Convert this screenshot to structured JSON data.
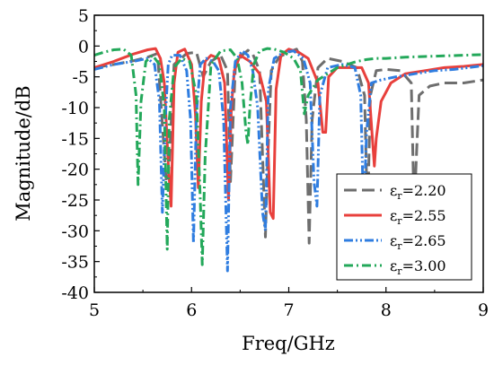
{
  "chart_data": {
    "type": "line",
    "title": "",
    "xlabel": "Freq/GHz",
    "ylabel": "Magnitude/dB",
    "xlim": [
      5,
      9
    ],
    "ylim": [
      -40,
      5
    ],
    "xticks": [
      5,
      6,
      7,
      8,
      9
    ],
    "yticks": [
      5,
      0,
      -5,
      -10,
      -15,
      -20,
      -25,
      -30,
      -35,
      -40
    ],
    "grid": false,
    "legend_position": "bottom-right",
    "series": [
      {
        "name_prefix": "ε",
        "name_sub": "r",
        "name_value": "=2.20",
        "color": "#6e6e6e",
        "dash": "long-dash",
        "x": [
          5.0,
          5.2,
          5.4,
          5.55,
          5.65,
          5.74,
          5.76,
          5.82,
          5.95,
          6.05,
          6.12,
          6.2,
          6.3,
          6.37,
          6.4,
          6.45,
          6.52,
          6.58,
          6.63,
          6.7,
          6.76,
          6.78,
          6.82,
          6.9,
          7.0,
          7.08,
          7.14,
          7.18,
          7.21,
          7.24,
          7.3,
          7.4,
          7.55,
          7.7,
          7.78,
          7.81,
          7.84,
          7.9,
          8.0,
          8.15,
          8.26,
          8.29,
          8.31,
          8.34,
          8.45,
          8.6,
          8.8,
          9.0
        ],
        "y": [
          -3.5,
          -3.0,
          -2.4,
          -1.8,
          -1.2,
          -22.0,
          -22.0,
          -3.0,
          -1.2,
          -1.0,
          -5.0,
          -2.5,
          -1.5,
          -4.0,
          -22.0,
          -3.5,
          -1.5,
          -0.7,
          -1.3,
          -4.0,
          -31.0,
          -20.0,
          -4.0,
          -1.8,
          -1.0,
          -0.5,
          -2.5,
          -12.0,
          -32.0,
          -12.0,
          -3.5,
          -2.0,
          -2.5,
          -3.5,
          -8.0,
          -28.0,
          -8.0,
          -4.0,
          -3.8,
          -4.0,
          -6.0,
          -27.0,
          -19.0,
          -8.0,
          -6.5,
          -6.0,
          -6.0,
          -5.5
        ]
      },
      {
        "name_prefix": "ε",
        "name_sub": "r",
        "name_value": "=2.55",
        "color": "#e8403c",
        "dash": "solid",
        "x": [
          5.0,
          5.2,
          5.4,
          5.55,
          5.63,
          5.68,
          5.72,
          5.76,
          5.79,
          5.82,
          5.86,
          5.93,
          6.0,
          6.04,
          6.07,
          6.1,
          6.14,
          6.2,
          6.28,
          6.34,
          6.38,
          6.41,
          6.44,
          6.5,
          6.6,
          6.7,
          6.77,
          6.81,
          6.84,
          6.87,
          6.92,
          7.0,
          7.1,
          7.2,
          7.3,
          7.35,
          7.38,
          7.41,
          7.5,
          7.65,
          7.75,
          7.82,
          7.86,
          7.88,
          7.9,
          7.95,
          8.05,
          8.2,
          8.4,
          8.6,
          8.8,
          9.0
        ],
        "y": [
          -3.5,
          -2.5,
          -1.3,
          -0.6,
          -0.4,
          -2.0,
          -6.0,
          -19.0,
          -26.0,
          -6.0,
          -1.0,
          -0.5,
          -3.0,
          -11.0,
          -23.0,
          -9.0,
          -2.5,
          -1.5,
          -2.0,
          -6.0,
          -25.0,
          -10.0,
          -4.0,
          -1.5,
          -2.5,
          -4.5,
          -9.0,
          -27.0,
          -28.0,
          -7.0,
          -1.5,
          -0.5,
          -1.0,
          -2.0,
          -6.0,
          -14.0,
          -14.0,
          -5.0,
          -3.5,
          -3.5,
          -3.5,
          -6.0,
          -15.0,
          -19.5,
          -15.0,
          -9.0,
          -6.0,
          -4.5,
          -4.0,
          -3.5,
          -3.3,
          -3.0
        ]
      },
      {
        "name_prefix": "ε",
        "name_sub": "r",
        "name_value": "=2.65",
        "color": "#2f7de0",
        "dash": "dash-dot-dot",
        "x": [
          5.0,
          5.2,
          5.4,
          5.55,
          5.62,
          5.67,
          5.7,
          5.73,
          5.76,
          5.8,
          5.88,
          5.95,
          5.99,
          6.02,
          6.05,
          6.09,
          6.15,
          6.22,
          6.28,
          6.33,
          6.37,
          6.4,
          6.45,
          6.52,
          6.58,
          6.63,
          6.68,
          6.73,
          6.76,
          6.79,
          6.85,
          6.95,
          7.05,
          7.15,
          7.22,
          7.26,
          7.29,
          7.32,
          7.4,
          7.55,
          7.68,
          7.74,
          7.77,
          7.8,
          7.85,
          7.95,
          8.1,
          8.3,
          8.5,
          8.7,
          9.0
        ],
        "y": [
          -3.8,
          -3.0,
          -2.5,
          -2.0,
          -3.0,
          -9.0,
          -27.0,
          -12.0,
          -3.0,
          -1.5,
          -1.5,
          -4.0,
          -12.0,
          -32.0,
          -11.0,
          -3.0,
          -2.0,
          -2.5,
          -4.0,
          -12.0,
          -36.5,
          -10.0,
          -2.5,
          -0.8,
          -1.5,
          -4.0,
          -10.0,
          -27.0,
          -30.0,
          -7.0,
          -2.0,
          -1.0,
          -0.8,
          -2.0,
          -6.0,
          -22.0,
          -26.0,
          -8.0,
          -3.5,
          -3.0,
          -3.5,
          -8.0,
          -28.0,
          -14.0,
          -6.0,
          -5.5,
          -5.0,
          -4.5,
          -4.0,
          -3.8,
          -3.2
        ]
      },
      {
        "name_prefix": "ε",
        "name_sub": "r",
        "name_value": "=3.00",
        "color": "#23a85a",
        "dash": "dash-dot",
        "x": [
          5.0,
          5.1,
          5.2,
          5.3,
          5.38,
          5.43,
          5.45,
          5.48,
          5.53,
          5.6,
          5.67,
          5.72,
          5.75,
          5.77,
          5.82,
          5.9,
          5.98,
          6.05,
          6.09,
          6.11,
          6.14,
          6.2,
          6.3,
          6.4,
          6.47,
          6.52,
          6.56,
          6.58,
          6.6,
          6.64,
          6.7,
          6.78,
          6.85,
          6.95,
          7.05,
          7.12,
          7.16,
          7.2,
          7.3,
          7.4,
          7.5,
          7.6,
          7.7,
          7.8,
          7.9,
          8.0,
          8.2,
          8.4,
          8.6,
          8.8,
          9.0
        ],
        "y": [
          -1.5,
          -1.0,
          -0.6,
          -0.5,
          -1.5,
          -8.0,
          -22.5,
          -9.0,
          -2.5,
          -1.5,
          -3.0,
          -10.0,
          -33.0,
          -12.0,
          -3.5,
          -2.0,
          -2.5,
          -8.0,
          -25.0,
          -35.5,
          -18.0,
          -3.0,
          -0.8,
          -0.6,
          -2.0,
          -6.0,
          -14.0,
          -16.0,
          -10.0,
          -3.0,
          -0.8,
          -0.4,
          -0.5,
          -1.0,
          -2.0,
          -4.0,
          -11.0,
          -8.0,
          -5.5,
          -4.5,
          -3.5,
          -3.0,
          -2.5,
          -2.2,
          -2.0,
          -2.0,
          -1.8,
          -1.7,
          -1.6,
          -1.5,
          -1.4
        ]
      }
    ]
  }
}
